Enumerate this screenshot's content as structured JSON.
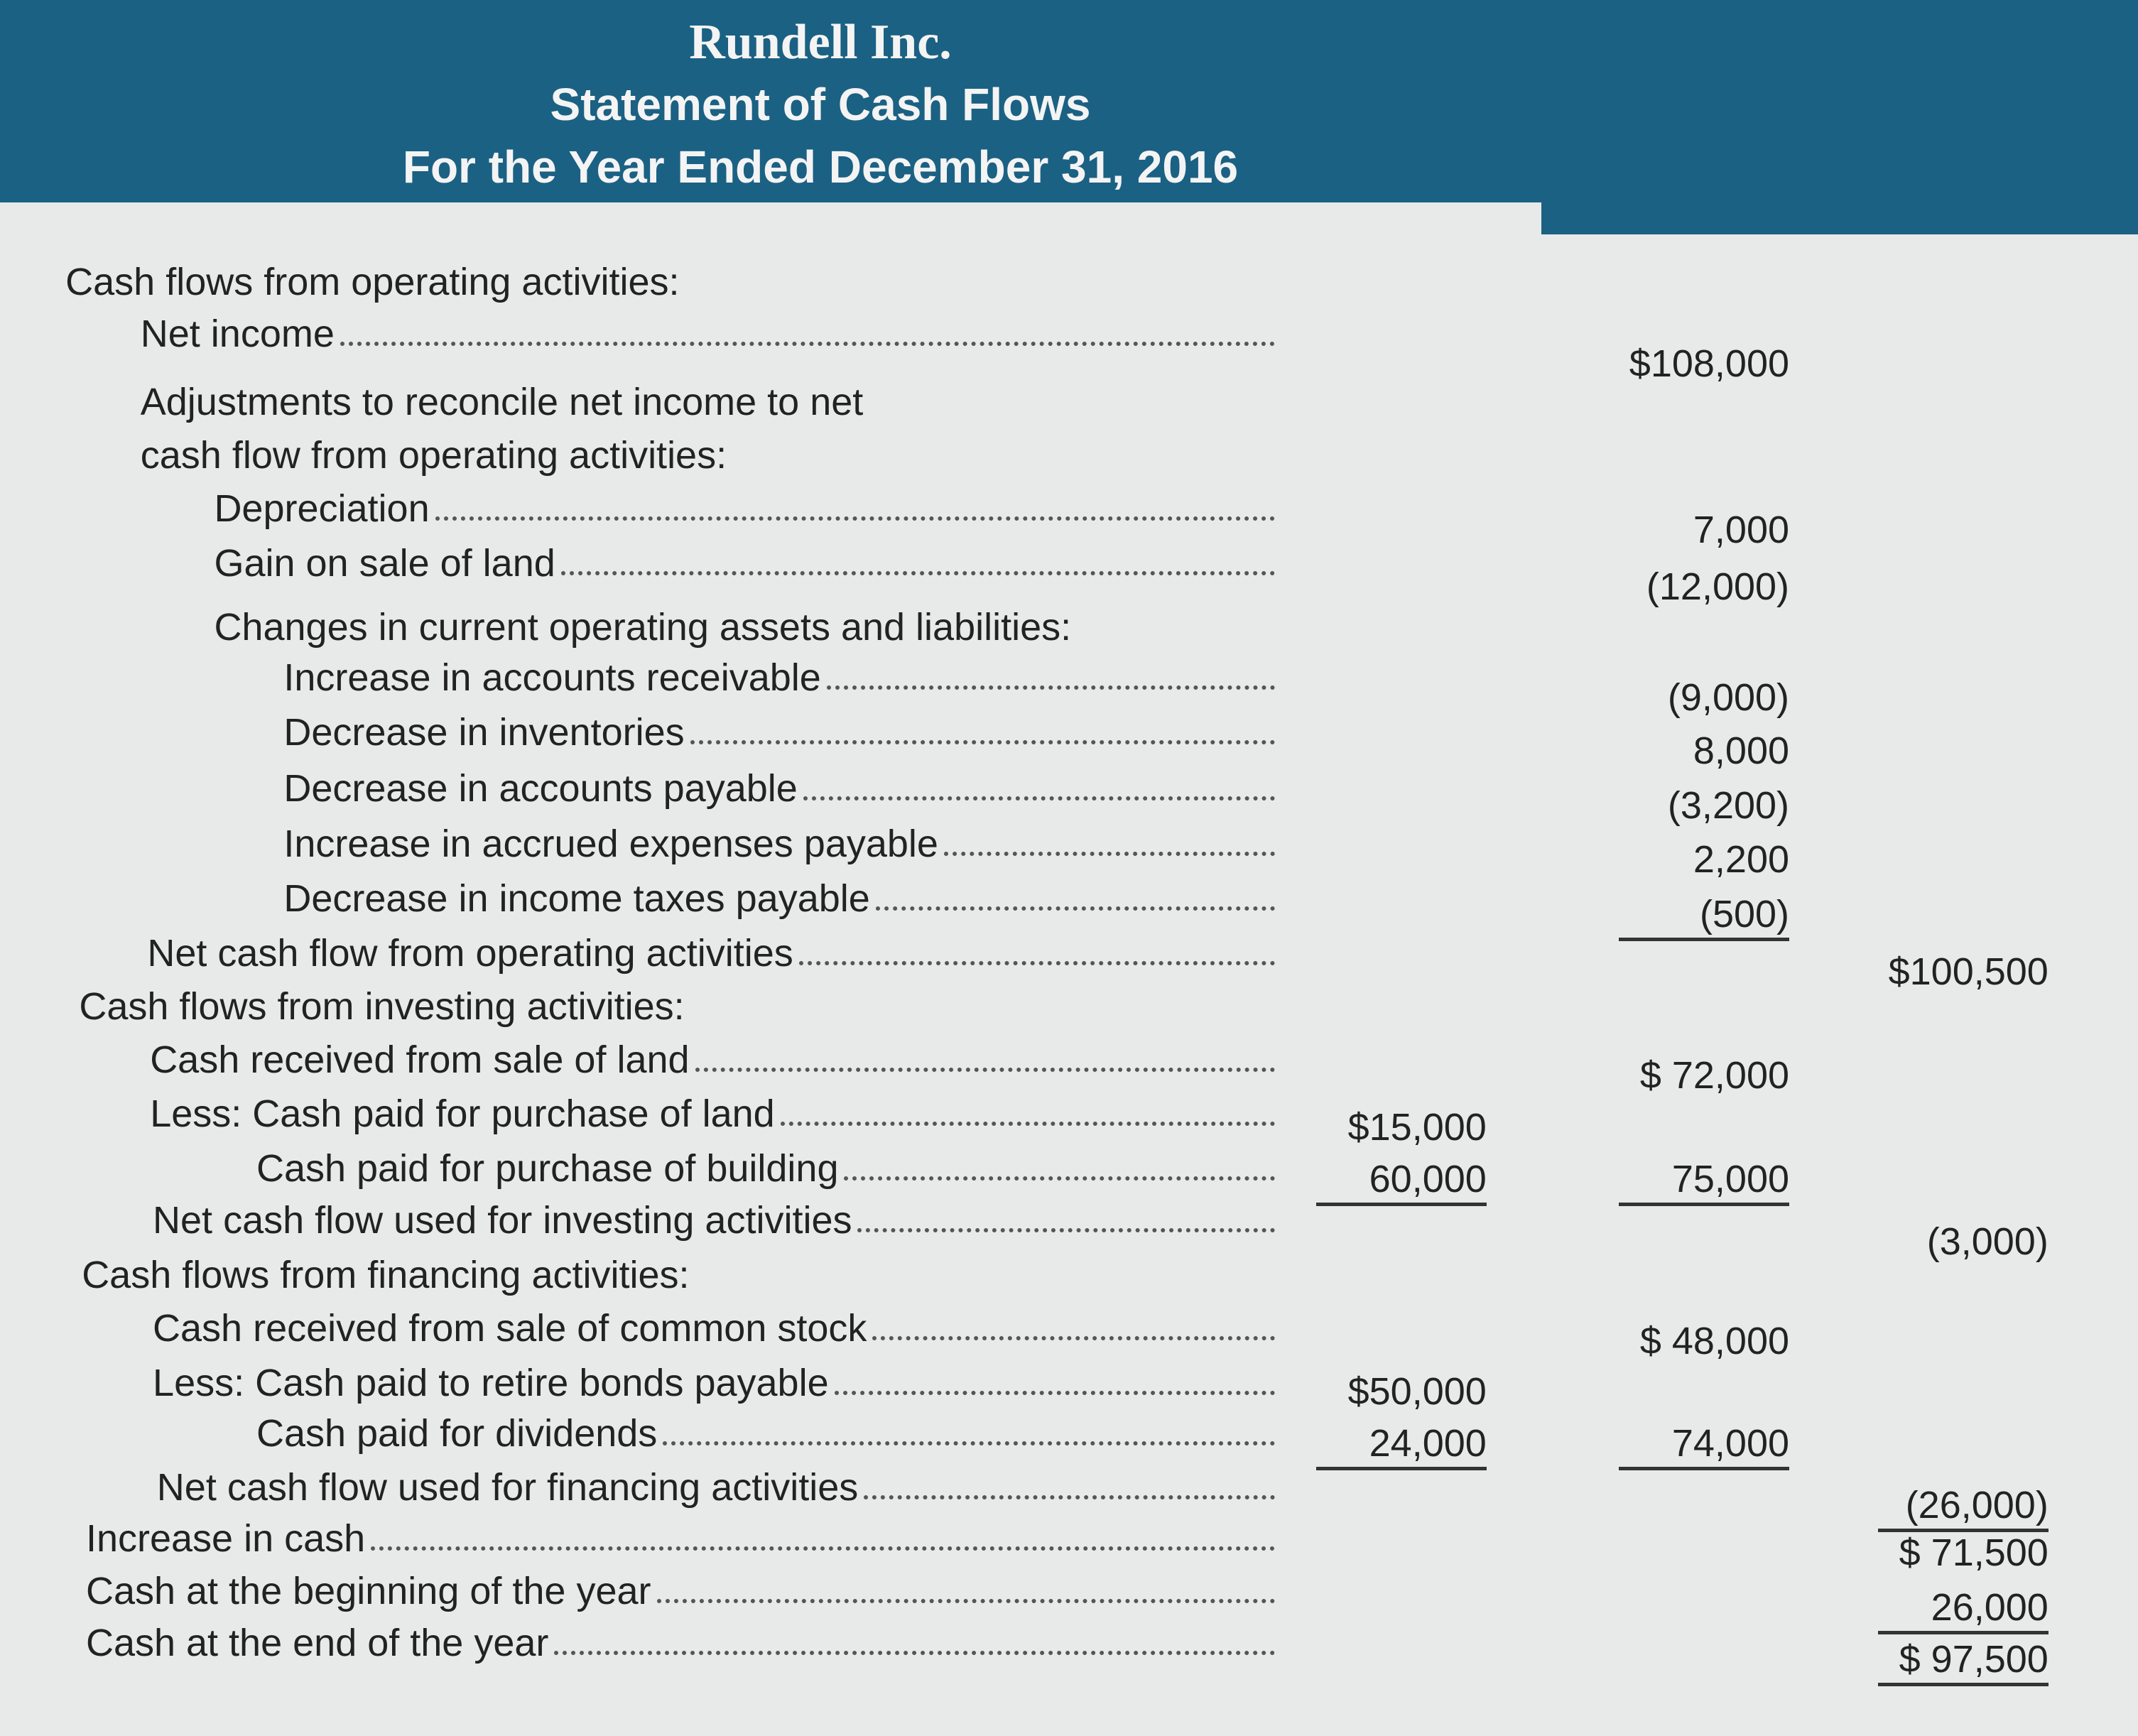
{
  "header": {
    "company": "Rundell Inc.",
    "statement": "Statement of Cash Flows",
    "period": "For the Year Ended December 31, 2016"
  },
  "rows": [
    {
      "label": "Cash flows from operating activities:"
    },
    {
      "label": "Net income",
      "col2": "$108,000"
    },
    {
      "label": "Adjustments to reconcile net income to net"
    },
    {
      "label": "cash flow from operating activities:"
    },
    {
      "label": "Depreciation",
      "col2": "7,000"
    },
    {
      "label": "Gain on sale of land",
      "col2": "(12,000)"
    },
    {
      "label": "Changes in current operating assets and liabilities:"
    },
    {
      "label": "Increase in accounts receivable",
      "col2": "(9,000)"
    },
    {
      "label": "Decrease in inventories",
      "col2": "8,000"
    },
    {
      "label": "Decrease in accounts payable",
      "col2": "(3,200)"
    },
    {
      "label": "Increase in accrued expenses payable",
      "col2": "2,200"
    },
    {
      "label": "Decrease in income taxes payable",
      "col2": "(500)"
    },
    {
      "label": "Net cash flow from operating activities",
      "col3": "$100,500"
    },
    {
      "label": "Cash flows from investing activities:"
    },
    {
      "label": "Cash received from sale of land",
      "col2": "$ 72,000"
    },
    {
      "label": "Less: Cash paid for purchase of land",
      "col1": "$15,000"
    },
    {
      "label": "Cash paid for purchase of building",
      "col1": "60,000",
      "col2": "75,000"
    },
    {
      "label": "Net cash flow used for investing activities",
      "col3": "(3,000)"
    },
    {
      "label": "Cash flows from financing activities:"
    },
    {
      "label": "Cash received from sale of common stock",
      "col2": "$ 48,000"
    },
    {
      "label": "Less: Cash paid to retire bonds payable",
      "col1": "$50,000"
    },
    {
      "label": "Cash paid for dividends",
      "col1": "24,000",
      "col2": "74,000"
    },
    {
      "label": "Net cash flow used for financing activities",
      "col3": "(26,000)"
    },
    {
      "label": "Increase in cash",
      "col3": "$ 71,500"
    },
    {
      "label": "Cash at the beginning of the year",
      "col3": "26,000"
    },
    {
      "label": "Cash at the end of the year",
      "col3": "$ 97,500"
    }
  ]
}
